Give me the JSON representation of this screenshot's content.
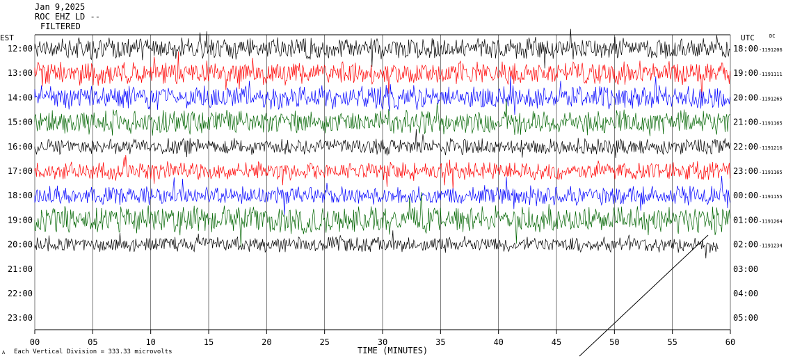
{
  "header": {
    "date": "Jan 9,2025",
    "station": "ROC EHZ LD --",
    "filter": "FILTERED"
  },
  "left_axis_title": "EST",
  "right_axis_title": "UTC",
  "dc_title": "DC",
  "x_axis_title": "TIME (MINUTES)",
  "scale_note": "Each Vertical Division = 333.33 microvolts",
  "corner_mark": "A",
  "chart_data": {
    "type": "line",
    "title": "",
    "xlabel": "TIME (MINUTES)",
    "xlim": [
      0,
      60
    ],
    "x_ticks": [
      "00",
      "05",
      "10",
      "15",
      "20",
      "25",
      "30",
      "35",
      "40",
      "45",
      "50",
      "55",
      "60"
    ],
    "rows_est": [
      "12:00",
      "13:00",
      "14:00",
      "15:00",
      "16:00",
      "17:00",
      "18:00",
      "19:00",
      "20:00",
      "21:00",
      "22:00",
      "23:00"
    ],
    "rows_utc": [
      "18:00",
      "19:00",
      "20:00",
      "21:00",
      "22:00",
      "23:00",
      "00:00",
      "01:00",
      "02:00",
      "03:00",
      "04:00",
      "05:00"
    ],
    "dc_offsets": [
      "-1191206",
      "-1191111",
      "-1191265",
      "-1191165",
      "-1191216",
      "-1191165",
      "-1191155",
      "-1191264",
      "-1191234",
      "",
      "",
      ""
    ],
    "trace_colors": [
      "#000000",
      "#ff0000",
      "#0000ff",
      "#006400"
    ],
    "series": [
      {
        "row": 0,
        "amplitude": 0.8,
        "end_minute": 60
      },
      {
        "row": 1,
        "amplitude": 0.85,
        "end_minute": 60
      },
      {
        "row": 2,
        "amplitude": 0.85,
        "end_minute": 60
      },
      {
        "row": 3,
        "amplitude": 0.9,
        "end_minute": 60
      },
      {
        "row": 4,
        "amplitude": 0.6,
        "end_minute": 60
      },
      {
        "row": 5,
        "amplitude": 0.65,
        "end_minute": 60
      },
      {
        "row": 6,
        "amplitude": 0.7,
        "end_minute": 60
      },
      {
        "row": 7,
        "amplitude": 1.0,
        "end_minute": 60
      },
      {
        "row": 8,
        "amplitude": 0.55,
        "end_minute": 59
      }
    ]
  }
}
